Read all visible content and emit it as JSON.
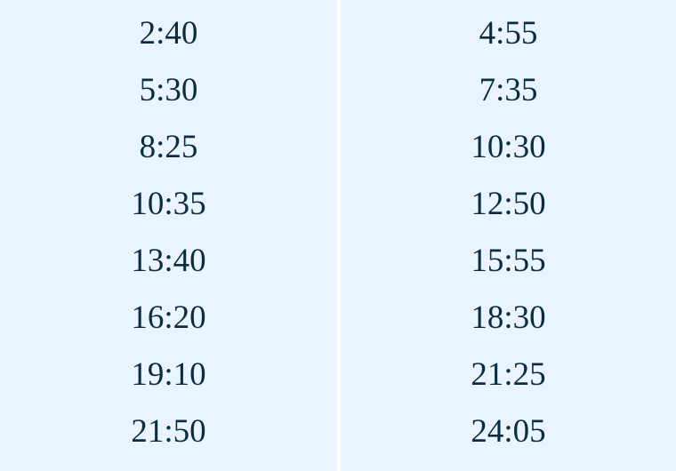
{
  "columns": [
    {
      "times": [
        "2:40",
        "5:30",
        "8:25",
        "10:35",
        "13:40",
        "16:20",
        "19:10",
        "21:50"
      ]
    },
    {
      "times": [
        "4:55",
        "7:35",
        "10:30",
        "12:50",
        "15:55",
        "18:30",
        "21:25",
        "24:05"
      ]
    }
  ],
  "colors": {
    "background": "#eaf4fe",
    "text": "#0b2d42",
    "divider": "#ffffff"
  }
}
